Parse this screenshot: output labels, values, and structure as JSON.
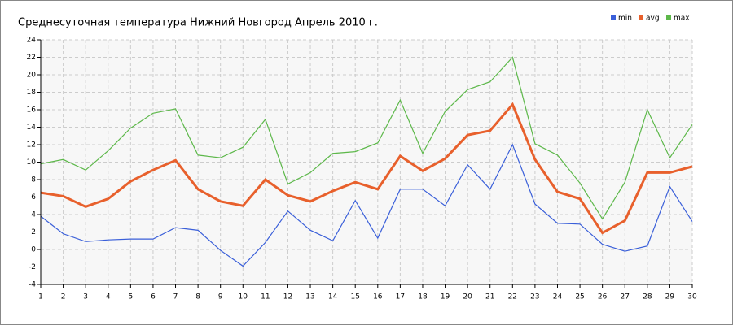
{
  "chart_data": {
    "type": "line",
    "title": "Среднесуточная температура Нижний Новгород  Апрель 2010 г.",
    "x": [
      1,
      2,
      3,
      4,
      5,
      6,
      7,
      8,
      9,
      10,
      11,
      12,
      13,
      14,
      15,
      16,
      17,
      18,
      19,
      20,
      21,
      22,
      23,
      24,
      25,
      26,
      27,
      28,
      29,
      30
    ],
    "xlim": [
      1,
      30
    ],
    "xticks": [
      1,
      2,
      3,
      4,
      5,
      6,
      7,
      8,
      9,
      10,
      11,
      12,
      13,
      14,
      15,
      16,
      17,
      18,
      19,
      20,
      21,
      22,
      23,
      24,
      25,
      26,
      27,
      28,
      29,
      30
    ],
    "ylim": [
      -4,
      24
    ],
    "yticks": [
      -4,
      -2,
      0,
      2,
      4,
      6,
      8,
      10,
      12,
      14,
      16,
      18,
      20,
      22,
      24
    ],
    "grid": true,
    "legend": "top-right",
    "series": [
      {
        "name": "min",
        "color": "#3a5fd9",
        "values": [
          3.8,
          1.8,
          0.9,
          1.1,
          1.2,
          1.2,
          2.5,
          2.2,
          -0.1,
          -1.9,
          0.8,
          4.4,
          2.2,
          1.0,
          5.6,
          1.3,
          6.9,
          6.9,
          5.0,
          9.7,
          6.9,
          12.0,
          5.2,
          3.0,
          2.9,
          0.6,
          -0.2,
          0.4,
          7.2,
          3.2
        ]
      },
      {
        "name": "avg",
        "color": "#e8602c",
        "values": [
          6.5,
          6.1,
          4.9,
          5.8,
          7.8,
          9.1,
          10.2,
          6.9,
          5.5,
          5.0,
          8.0,
          6.2,
          5.5,
          6.7,
          7.7,
          6.9,
          10.7,
          9.0,
          10.4,
          13.1,
          13.6,
          16.6,
          10.3,
          6.6,
          5.8,
          1.9,
          3.3,
          8.8,
          8.8,
          9.5
        ]
      },
      {
        "name": "max",
        "color": "#5db84a",
        "values": [
          9.8,
          10.3,
          9.1,
          11.3,
          13.9,
          15.6,
          16.1,
          10.8,
          10.5,
          11.7,
          14.9,
          7.5,
          8.8,
          11.0,
          11.2,
          12.2,
          17.1,
          11.0,
          15.8,
          18.3,
          19.2,
          22.0,
          12.1,
          10.8,
          7.6,
          3.5,
          7.7,
          16.0,
          10.5,
          14.3
        ]
      }
    ]
  }
}
